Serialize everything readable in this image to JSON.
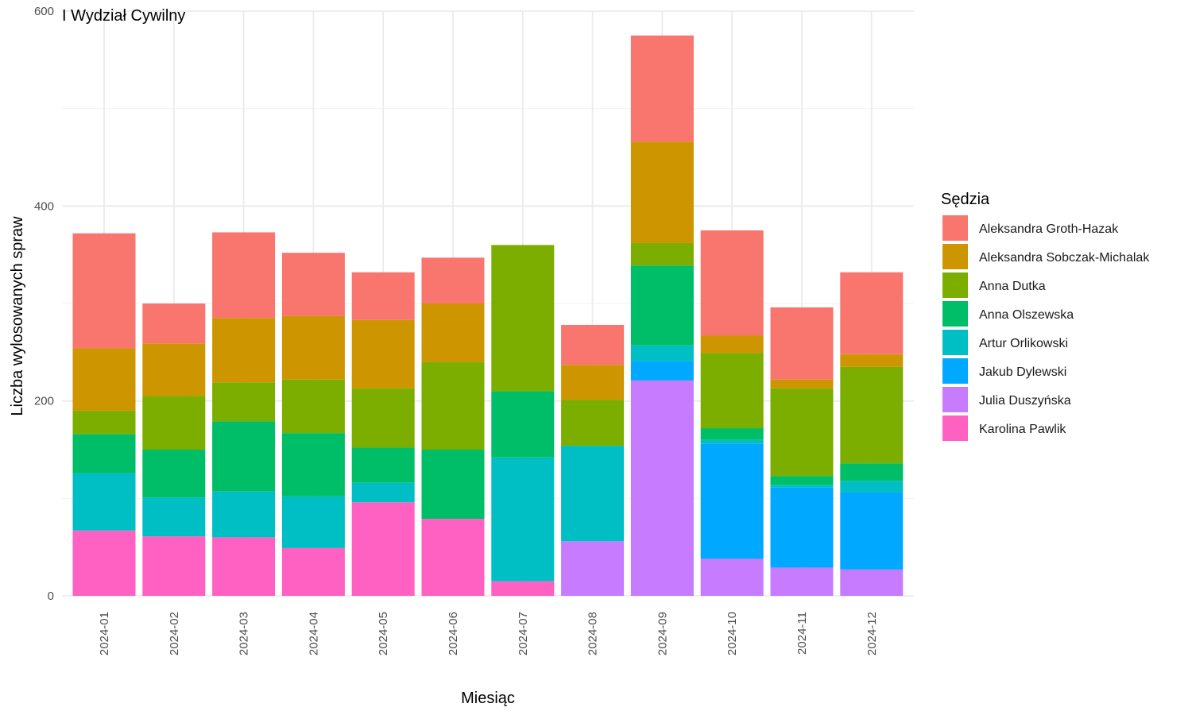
{
  "chart_data": {
    "type": "bar",
    "stacked": true,
    "title": "I Wydział Cywilny",
    "xlabel": "Miesiąc",
    "ylabel": "Liczba wylosowanych spraw",
    "ylim": [
      0,
      600
    ],
    "yticks": [
      0,
      200,
      400,
      600
    ],
    "grid": true,
    "legend_title": "Sędzia",
    "legend_position": "right",
    "categories": [
      "2024-01",
      "2024-02",
      "2024-03",
      "2024-04",
      "2024-05",
      "2024-06",
      "2024-07",
      "2024-08",
      "2024-09",
      "2024-10",
      "2024-11",
      "2024-12"
    ],
    "series": [
      {
        "name": "Karolina Pawlik",
        "color": "#FF61C3",
        "values": [
          67,
          61,
          60,
          49,
          96,
          79,
          15,
          0,
          0,
          0,
          0,
          0
        ]
      },
      {
        "name": "Julia Duszyńska",
        "color": "#C77CFF",
        "values": [
          0,
          0,
          0,
          0,
          0,
          0,
          0,
          56,
          221,
          38,
          29,
          27
        ]
      },
      {
        "name": "Jakub Dylewski",
        "color": "#00A9FF",
        "values": [
          0,
          0,
          0,
          0,
          0,
          0,
          0,
          0,
          20,
          118,
          82,
          79
        ]
      },
      {
        "name": "Artur Orlikowski",
        "color": "#00BFC4",
        "values": [
          59,
          40,
          47,
          53,
          20,
          0,
          127,
          98,
          16,
          4,
          3,
          12
        ]
      },
      {
        "name": "Anna Olszewska",
        "color": "#00BE67",
        "values": [
          40,
          49,
          72,
          65,
          36,
          71,
          68,
          0,
          82,
          12,
          9,
          18
        ]
      },
      {
        "name": "Anna Dutka",
        "color": "#7CAE00",
        "values": [
          24,
          55,
          40,
          55,
          61,
          90,
          150,
          47,
          23,
          77,
          90,
          99
        ]
      },
      {
        "name": "Aleksandra Sobczak-Michalak",
        "color": "#CD9600",
        "values": [
          64,
          54,
          66,
          65,
          70,
          60,
          0,
          36,
          104,
          18,
          9,
          13
        ]
      },
      {
        "name": "Aleksandra Groth-Hazak",
        "color": "#F8766D",
        "values": [
          118,
          41,
          88,
          65,
          49,
          47,
          0,
          41,
          109,
          108,
          74,
          84
        ]
      }
    ],
    "legend_order": [
      "Aleksandra Groth-Hazak",
      "Aleksandra Sobczak-Michalak",
      "Anna Dutka",
      "Anna Olszewska",
      "Artur Orlikowski",
      "Jakub Dylewski",
      "Julia Duszyńska",
      "Karolina Pawlik"
    ]
  }
}
